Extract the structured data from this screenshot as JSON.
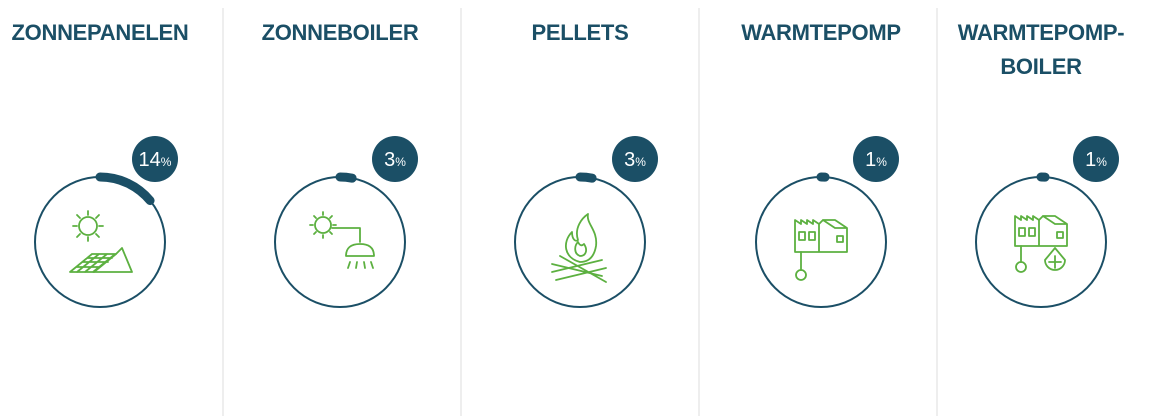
{
  "chart_data": {
    "type": "radial",
    "categories": [
      "ZONNEPANELEN",
      "ZONNEBOILER",
      "PELLETS",
      "WARMTEPOMP",
      "WARMTEPOMP-BOILER"
    ],
    "values": [
      14,
      3,
      3,
      1,
      1
    ],
    "value_unit": "%",
    "ylim": [
      0,
      100
    ],
    "color": "#1b4f66",
    "icon_color": "#5cb040"
  }
}
